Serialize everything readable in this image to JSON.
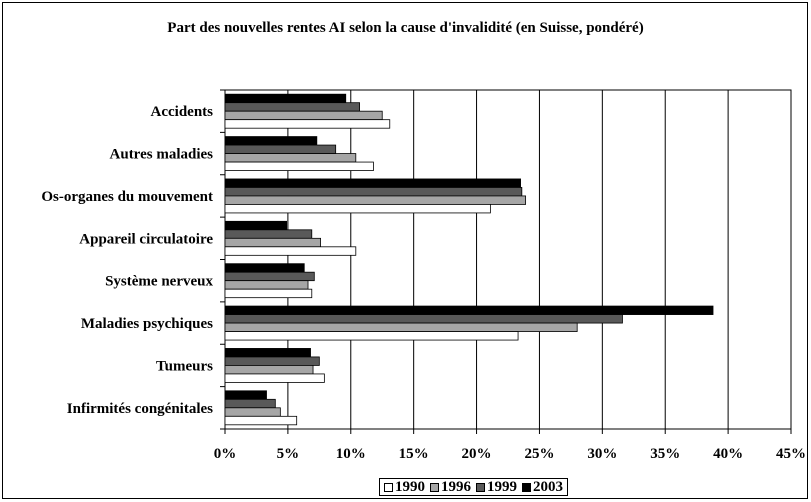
{
  "chart_data": {
    "type": "bar",
    "orientation": "horizontal",
    "title": "Part des nouvelles rentes AI selon la cause d'invalidité (en Suisse, pondéré)",
    "xlabel": "",
    "ylabel": "",
    "xlim": [
      0,
      45
    ],
    "x_ticks": [
      "0%",
      "5%",
      "10%",
      "15%",
      "20%",
      "25%",
      "30%",
      "35%",
      "40%",
      "45%"
    ],
    "grid": "vertical",
    "legend_position": "bottom",
    "categories": [
      "Accidents",
      "Autres maladies",
      "Os-organes du mouvement",
      "Appareil circulatoire",
      "Système nerveux",
      "Maladies psychiques",
      "Tumeurs",
      "Infirmités congénitales"
    ],
    "series": [
      {
        "name": "1990",
        "color": "#ffffff",
        "values": [
          13.1,
          11.8,
          21.1,
          10.4,
          6.9,
          23.3,
          7.9,
          5.7
        ]
      },
      {
        "name": "1996",
        "color": "#a6a6a6",
        "values": [
          12.5,
          10.4,
          23.9,
          7.6,
          6.6,
          28.0,
          7.0,
          4.4
        ]
      },
      {
        "name": "1999",
        "color": "#595959",
        "values": [
          10.7,
          8.8,
          23.6,
          6.9,
          7.1,
          31.6,
          7.5,
          4.0
        ]
      },
      {
        "name": "2003",
        "color": "#000000",
        "values": [
          9.6,
          7.3,
          23.5,
          4.9,
          6.3,
          38.8,
          6.8,
          3.3
        ]
      }
    ]
  }
}
